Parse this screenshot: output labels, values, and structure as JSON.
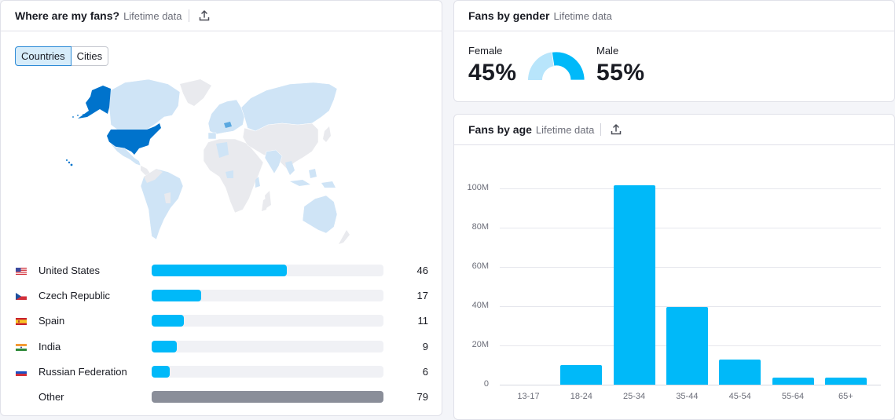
{
  "locations_card": {
    "title": "Where are my fans?",
    "subtitle": "Lifetime data",
    "export_icon": "export-upload-icon",
    "toggle": {
      "options": [
        "Countries",
        "Cities"
      ],
      "selected": "Countries"
    },
    "map": {
      "highlight_color": "#0073cc",
      "light_color": "#cfe4f6",
      "empty_color": "#e9eaee",
      "highlighted_country": "United States"
    },
    "countries": [
      {
        "name": "United States",
        "value": "46",
        "flag": "flag-us-icon"
      },
      {
        "name": "Czech Republic",
        "value": "17",
        "flag": "flag-cz-icon"
      },
      {
        "name": "Spain",
        "value": "11",
        "flag": "flag-es-icon"
      },
      {
        "name": "India",
        "value": "9",
        "flag": "flag-in-icon"
      },
      {
        "name": "Russian Federation",
        "value": "6",
        "flag": "flag-ru-icon"
      },
      {
        "name": "Other",
        "value": "79",
        "flag": null
      }
    ],
    "bar_color": "#00b9f9",
    "other_bar_color": "#8a8e99"
  },
  "gender_card": {
    "title": "Fans by gender",
    "subtitle": "Lifetime data",
    "female_label": "Female",
    "female_value": "45%",
    "male_label": "Male",
    "male_value": "55%",
    "female_color": "#b8e5fb",
    "male_color": "#00b9f9"
  },
  "age_card": {
    "title": "Fans by age",
    "subtitle": "Lifetime data",
    "export_icon": "export-upload-icon"
  },
  "chart_data": {
    "type": "bar",
    "title": "Fans by age",
    "subtitle": "Lifetime data",
    "categories": [
      "13-17",
      "18-24",
      "25-34",
      "35-44",
      "45-54",
      "55-64",
      "65+"
    ],
    "values": [
      0,
      10000000,
      101500000,
      39600000,
      12800000,
      3600000,
      3600000
    ],
    "xlabel": "",
    "ylabel": "",
    "ylim": [
      0,
      100000000
    ],
    "y_ticks": [
      "0",
      "20M",
      "40M",
      "60M",
      "80M",
      "100M"
    ],
    "grid": true,
    "legend": null,
    "bar_color": "#00b9f9"
  }
}
